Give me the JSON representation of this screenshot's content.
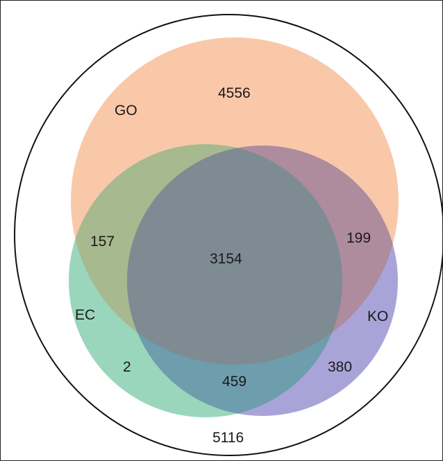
{
  "diagram": {
    "type": "venn",
    "sets": [
      {
        "label": "GO",
        "color": "#F9C8A8"
      },
      {
        "label": "EC",
        "color": "#9AD6BC"
      },
      {
        "label": "KO",
        "color": "#A9A4D8"
      }
    ],
    "regions": {
      "go_only": "4556",
      "go_ec": "157",
      "go_ko": "199",
      "all_three": "3154",
      "ec_only": "2",
      "ec_ko": "459",
      "ko_only": "380",
      "outside": "5116"
    },
    "colors": {
      "go_ec": "#A7B98E",
      "go_ko": "#AE8B9D",
      "ec_ko": "#6E9DAE",
      "all_three": "#7F8B93",
      "outline": "#111111"
    }
  }
}
